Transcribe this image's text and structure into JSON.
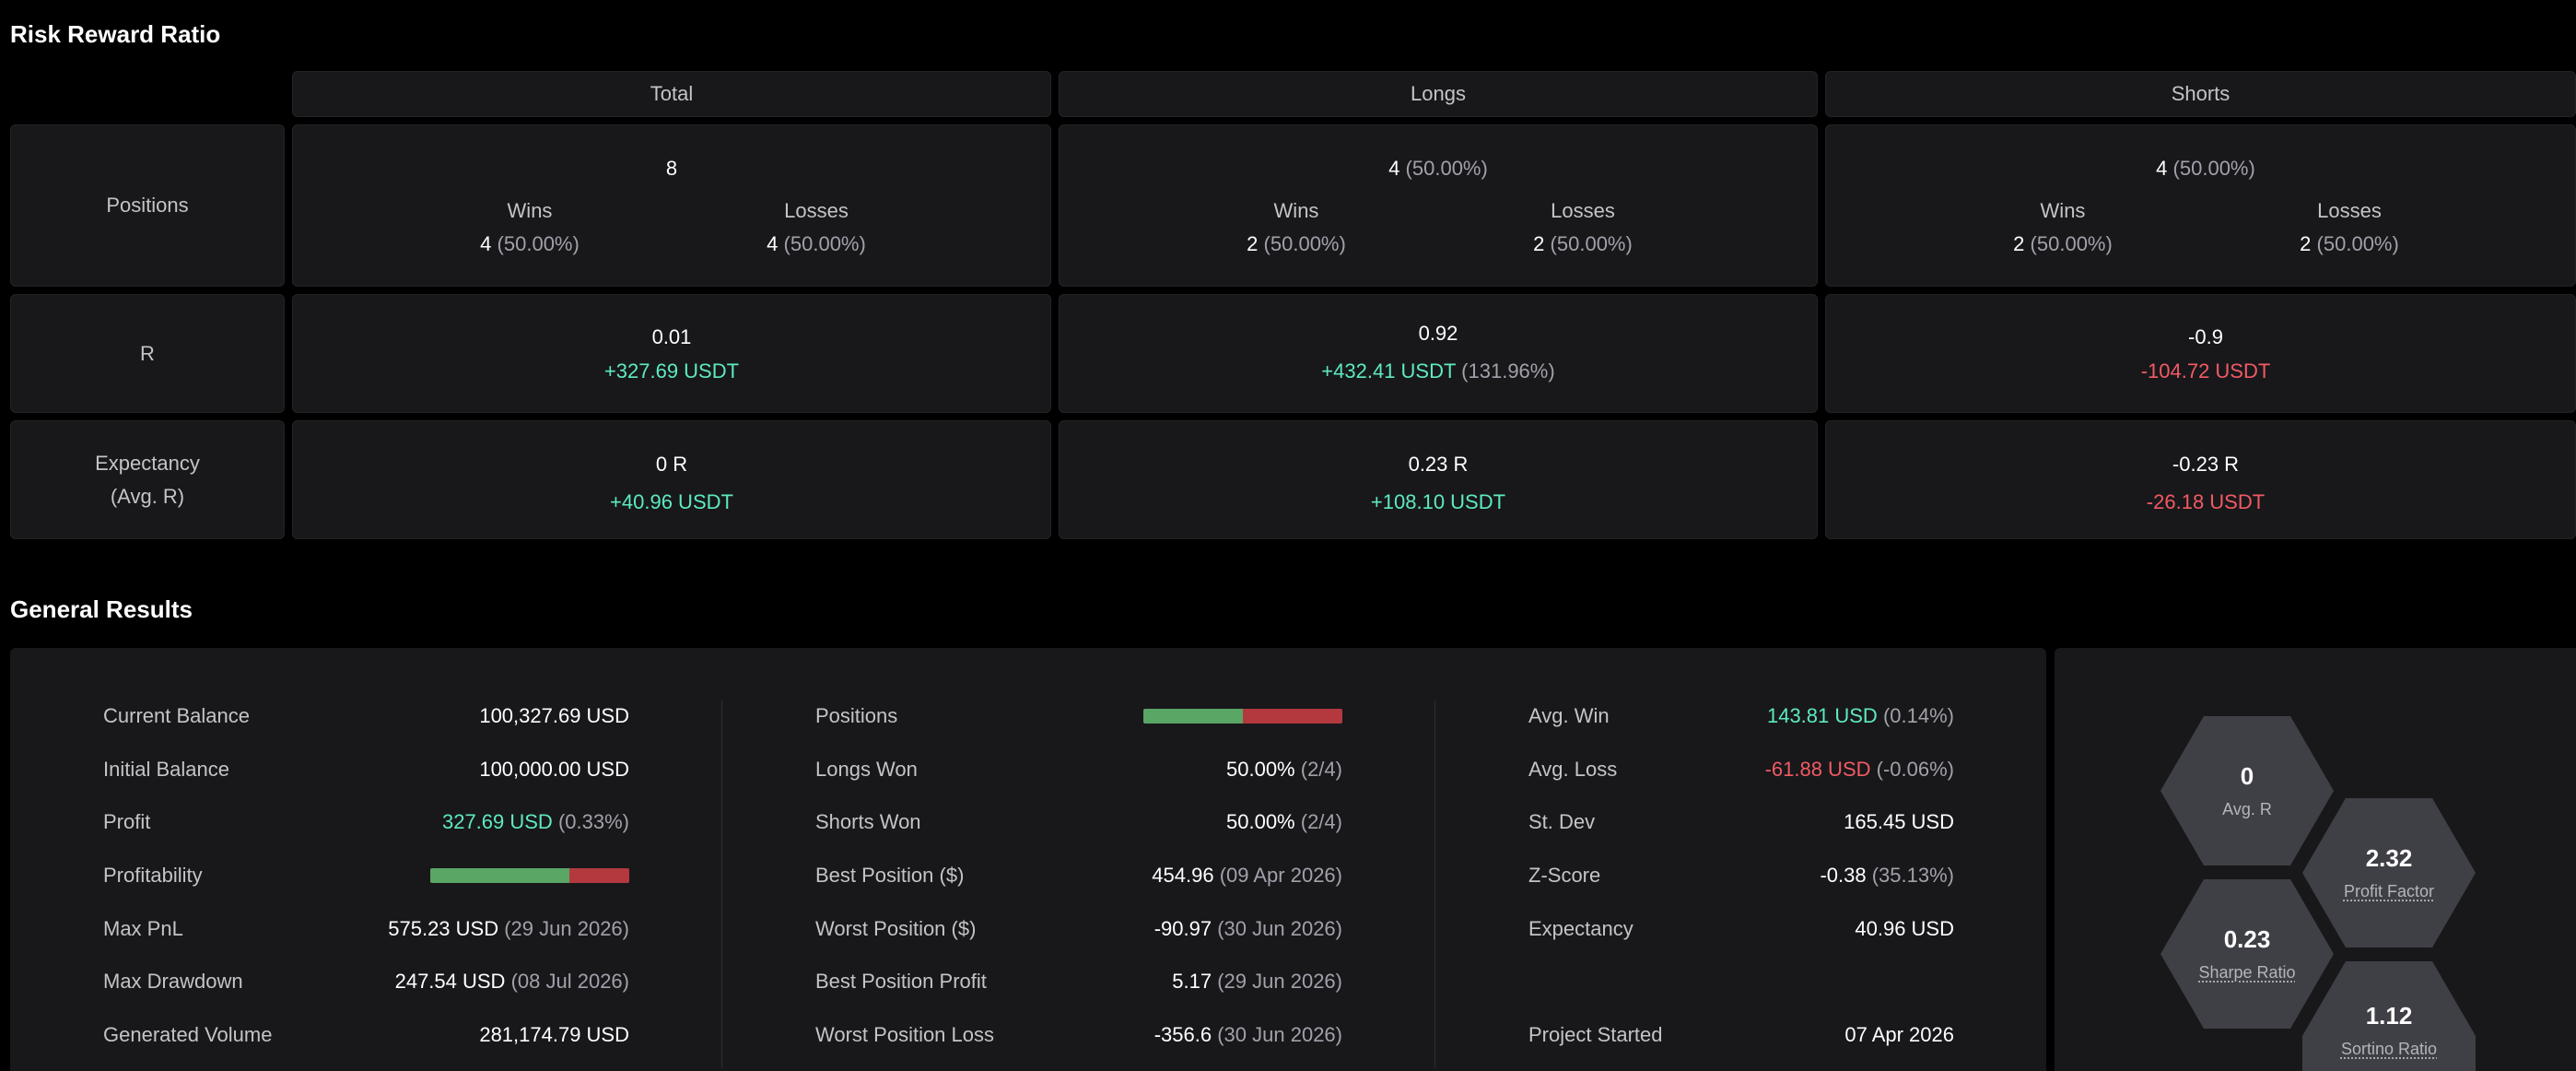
{
  "risk_reward": {
    "title": "Risk Reward Ratio",
    "columns": {
      "total": "Total",
      "longs": "Longs",
      "shorts": "Shorts"
    },
    "rows": {
      "positions": "Positions",
      "r": "R",
      "expectancy_1": "Expectancy",
      "expectancy_2": "(Avg. R)"
    },
    "wins_label": "Wins",
    "losses_label": "Losses",
    "total": {
      "positions": "8",
      "positions_pct": "",
      "wins": "4",
      "wins_pct": "(50.00%)",
      "losses": "4",
      "losses_pct": "(50.00%)",
      "r": "0.01",
      "r_usdt": "+327.69 USDT",
      "r_pct": "",
      "exp": "0 R",
      "exp_usdt": "+40.96 USDT"
    },
    "longs": {
      "positions": "4",
      "positions_pct": "(50.00%)",
      "wins": "2",
      "wins_pct": "(50.00%)",
      "losses": "2",
      "losses_pct": "(50.00%)",
      "r": "0.92",
      "r_usdt": "+432.41 USDT",
      "r_pct": "(131.96%)",
      "exp": "0.23 R",
      "exp_usdt": "+108.10 USDT"
    },
    "shorts": {
      "positions": "4",
      "positions_pct": "(50.00%)",
      "wins": "2",
      "wins_pct": "(50.00%)",
      "losses": "2",
      "losses_pct": "(50.00%)",
      "r": "-0.9",
      "r_usdt": "-104.72 USDT",
      "r_pct": "",
      "exp": "-0.23 R",
      "exp_usdt": "-26.18 USDT"
    }
  },
  "general": {
    "title": "General Results",
    "col1": {
      "current_balance_label": "Current Balance",
      "current_balance": "100,327.69 USD",
      "initial_balance_label": "Initial Balance",
      "initial_balance": "100,000.00 USD",
      "profit_label": "Profit",
      "profit": "327.69 USD",
      "profit_pct": "(0.33%)",
      "profitability_label": "Profitability",
      "max_pnl_label": "Max PnL",
      "max_pnl": "575.23 USD",
      "max_pnl_date": "(29 Jun 2026)",
      "max_dd_label": "Max Drawdown",
      "max_dd": "247.54 USD",
      "max_dd_date": "(08 Jul 2026)",
      "volume_label": "Generated Volume",
      "volume": "281,174.79 USD"
    },
    "col2": {
      "positions_label": "Positions",
      "longs_won_label": "Longs Won",
      "longs_won": "50.00%",
      "longs_won_ratio": "(2/4)",
      "shorts_won_label": "Shorts Won",
      "shorts_won": "50.00%",
      "shorts_won_ratio": "(2/4)",
      "best_pos_label": "Best Position ($)",
      "best_pos": "454.96",
      "best_pos_date": "(09 Apr 2026)",
      "worst_pos_label": "Worst Position ($)",
      "worst_pos": "-90.97",
      "worst_pos_date": "(30 Jun 2026)",
      "best_profit_label": "Best Position Profit",
      "best_profit": "5.17",
      "best_profit_date": "(29 Jun 2026)",
      "worst_loss_label": "Worst Position Loss",
      "worst_loss": "-356.6",
      "worst_loss_date": "(30 Jun 2026)"
    },
    "col3": {
      "avg_win_label": "Avg. Win",
      "avg_win": "143.81 USD",
      "avg_win_pct": "(0.14%)",
      "avg_loss_label": "Avg. Loss",
      "avg_loss": "-61.88 USD",
      "avg_loss_pct": "(-0.06%)",
      "stdev_label": "St. Dev",
      "stdev": "165.45 USD",
      "zscore_label": "Z-Score",
      "zscore": "-0.38",
      "zscore_pct": "(35.13%)",
      "expectancy_label": "Expectancy",
      "expectancy": "40.96 USD",
      "started_label": "Project Started",
      "started": "07 Apr 2026"
    },
    "bars": {
      "profitability_win_fraction": 0.7,
      "positions_win_fraction": 0.5,
      "win_color": "#5aa665",
      "loss_color": "#b3393e"
    },
    "hexes": {
      "avg_r": "0",
      "avg_r_label": "Avg. R",
      "profit_factor": "2.32",
      "profit_factor_label": "Profit Factor",
      "sharpe": "0.23",
      "sharpe_label": "Sharpe Ratio",
      "sortino": "1.12",
      "sortino_label": "Sortino Ratio"
    }
  }
}
